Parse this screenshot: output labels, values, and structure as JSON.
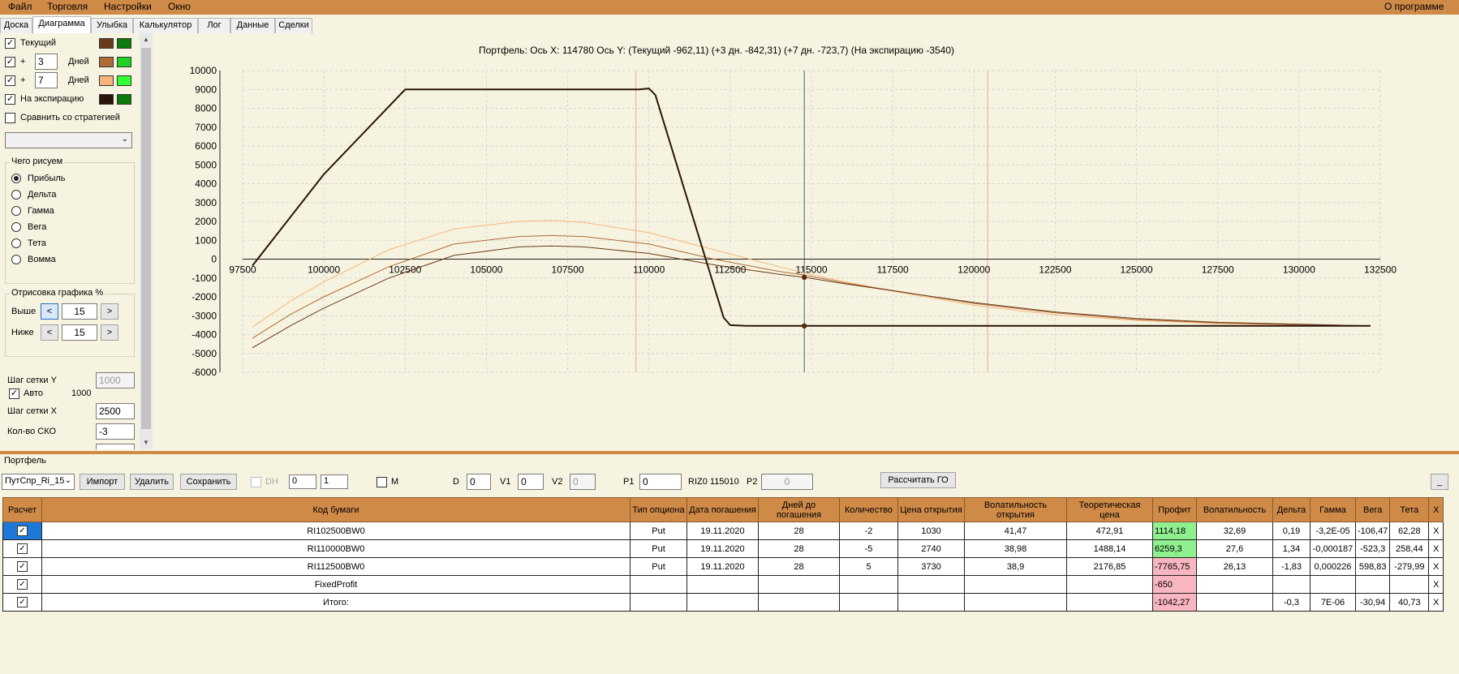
{
  "menu": {
    "items": [
      "Файл",
      "Торговля",
      "Настройки",
      "Окно"
    ],
    "about": "О программе"
  },
  "tabs": [
    "Доска",
    "Диаграмма",
    "Улыбка",
    "Калькулятор",
    "Лог",
    "Данные",
    "Сделки"
  ],
  "active_tab": "Диаграмма",
  "left_panel": {
    "current_label": "Текущий",
    "plus_sign": "+",
    "plus3_days": "3",
    "plus7_days": "7",
    "days_label": "Дней",
    "expiry_label": "На экспирацию",
    "compare_label": "Сравнить со стратегией",
    "colors": {
      "current": [
        "#6b3a1a",
        "#0c7a0c"
      ],
      "plus3": [
        "#b06a36",
        "#21d021"
      ],
      "plus7": [
        "#f6b47a",
        "#33ff33"
      ],
      "expiry": [
        "#2b1508",
        "#0c7a0c"
      ]
    },
    "what_group_title": "Чего рисуем",
    "what_options": [
      "Прибыль",
      "Дельта",
      "Гамма",
      "Вега",
      "Тета",
      "Вомма"
    ],
    "what_selected": 0,
    "render_group_title": "Отрисовка графика %",
    "above_label": "Выше",
    "below_label": "Ниже",
    "above_value": "15",
    "below_value": "15",
    "dec_symbol": "<",
    "inc_symbol": ">",
    "grid_y_label": "Шаг сетки Y",
    "grid_y_value": "1000",
    "auto_label": "Авто",
    "auto_value": "1000",
    "grid_x_label": "Шаг сетки X",
    "grid_x_value": "2500",
    "sko_label": "Кол-во СКО",
    "sko_value": "-3"
  },
  "chart_title": "Портфель:  Ось X:  114780  Ось Y:   (Текущий -962,11)   (+3 дн. -842,31)   (+7 дн. -723,7)   (На экспирацию -3540)",
  "chart_data": {
    "type": "line",
    "title": "Портфель:  Ось X:  114780  Ось Y:   (Текущий -962,11)   (+3 дн. -842,31)   (+7 дн. -723,7)   (На экспирацию -3540)",
    "xlim": [
      97500,
      132500
    ],
    "ylim": [
      -6000,
      10000
    ],
    "x_ticks": [
      97500,
      100000,
      102500,
      105000,
      107500,
      110000,
      112500,
      115000,
      117500,
      120000,
      122500,
      125000,
      127500,
      130000,
      132500
    ],
    "y_ticks": [
      10000,
      9000,
      8000,
      7000,
      6000,
      5000,
      4000,
      3000,
      2000,
      1000,
      0,
      -1000,
      -2000,
      -3000,
      -4000,
      -5000,
      -6000
    ],
    "grid": true,
    "cursor_x": 114780,
    "sigma_lines_x": [
      109600,
      120420
    ],
    "series": [
      {
        "name": "На экспирацию",
        "color": "#2b1508",
        "width": 2,
        "points": [
          [
            97800,
            -350
          ],
          [
            100000,
            4500
          ],
          [
            102500,
            9000
          ],
          [
            109700,
            9000
          ],
          [
            110000,
            9050
          ],
          [
            110200,
            8700
          ],
          [
            112300,
            -3100
          ],
          [
            112500,
            -3500
          ],
          [
            113000,
            -3540
          ],
          [
            114780,
            -3540
          ],
          [
            132200,
            -3540
          ]
        ]
      },
      {
        "name": "Текущий",
        "color": "#6b3a1a",
        "width": 1,
        "points": [
          [
            97800,
            -4700
          ],
          [
            99000,
            -3500
          ],
          [
            100000,
            -2600
          ],
          [
            102000,
            -1000
          ],
          [
            104000,
            200
          ],
          [
            106000,
            650
          ],
          [
            107000,
            700
          ],
          [
            108000,
            650
          ],
          [
            110000,
            300
          ],
          [
            112000,
            -300
          ],
          [
            114000,
            -800
          ],
          [
            114780,
            -962
          ],
          [
            116000,
            -1300
          ],
          [
            118000,
            -1800
          ],
          [
            120000,
            -2300
          ],
          [
            122500,
            -2800
          ],
          [
            125000,
            -3150
          ],
          [
            127500,
            -3350
          ],
          [
            130000,
            -3450
          ],
          [
            132200,
            -3540
          ]
        ]
      },
      {
        "name": "+3 дн.",
        "color": "#b06a36",
        "width": 1,
        "points": [
          [
            97800,
            -4200
          ],
          [
            99000,
            -2900
          ],
          [
            100000,
            -2000
          ],
          [
            102000,
            -400
          ],
          [
            104000,
            800
          ],
          [
            106000,
            1200
          ],
          [
            107000,
            1250
          ],
          [
            108000,
            1200
          ],
          [
            110000,
            800
          ],
          [
            112000,
            0
          ],
          [
            114000,
            -650
          ],
          [
            114780,
            -842
          ],
          [
            116000,
            -1250
          ],
          [
            118000,
            -1800
          ],
          [
            120000,
            -2350
          ],
          [
            122500,
            -2850
          ],
          [
            125000,
            -3200
          ],
          [
            127500,
            -3380
          ],
          [
            130000,
            -3470
          ],
          [
            132200,
            -3540
          ]
        ]
      },
      {
        "name": "+7 дн.",
        "color": "#f6b47a",
        "width": 1,
        "points": [
          [
            97800,
            -3600
          ],
          [
            99000,
            -2200
          ],
          [
            100000,
            -1200
          ],
          [
            102000,
            500
          ],
          [
            104000,
            1600
          ],
          [
            106000,
            2000
          ],
          [
            107000,
            2050
          ],
          [
            108000,
            1950
          ],
          [
            110000,
            1400
          ],
          [
            112000,
            500
          ],
          [
            114000,
            -400
          ],
          [
            114780,
            -724
          ],
          [
            116000,
            -1200
          ],
          [
            118000,
            -1850
          ],
          [
            120000,
            -2450
          ],
          [
            122500,
            -2950
          ],
          [
            125000,
            -3250
          ],
          [
            127500,
            -3420
          ],
          [
            130000,
            -3490
          ],
          [
            132200,
            -3540
          ]
        ]
      }
    ],
    "markers": [
      {
        "x": 114780,
        "y": -962
      },
      {
        "x": 114780,
        "y": -3540
      }
    ]
  },
  "portfolio": {
    "section_label": "Портфель",
    "selector_value": "ПутСпр_Ri_15",
    "import_label": "Импорт",
    "delete_label": "Удалить",
    "save_label": "Сохранить",
    "dh_label": "DH",
    "dh_a": "0",
    "dh_b": "1",
    "m_label": "M",
    "d_label": "D",
    "d_value": "0",
    "v1_label": "V1",
    "v1_value": "0",
    "v2_label": "V2",
    "v2_value": "0",
    "p1_label": "P1",
    "p1_value": "0",
    "riz_label": "RIZ0 115010",
    "p2_label": "P2",
    "p2_value": "0",
    "calc_go_label": "Рассчитать ГО",
    "min_label": "_"
  },
  "table": {
    "headers": [
      "Расчет",
      "Код бумаги",
      "Тип опциона",
      "Дата погашения",
      "Дней до погашения",
      "Количество",
      "Цена открытия",
      "Волатильность открытия",
      "Теоретическая цена",
      "Профит",
      "Волатильность",
      "Дельта",
      "Гамма",
      "Вега",
      "Тета",
      "X"
    ],
    "rows": [
      [
        "",
        "RI102500BW0",
        "Put",
        "19.11.2020",
        "28",
        "-2",
        "1030",
        "41,47",
        "472,91",
        "1114,18",
        "32,69",
        "0,19",
        "-3,2E-05",
        "-106,47",
        "62,28",
        "X"
      ],
      [
        "",
        "RI110000BW0",
        "Put",
        "19.11.2020",
        "28",
        "-5",
        "2740",
        "38,98",
        "1488,14",
        "6259,3",
        "27,6",
        "1,34",
        "-0,000187",
        "-523,3",
        "258,44",
        "X"
      ],
      [
        "",
        "RI112500BW0",
        "Put",
        "19.11.2020",
        "28",
        "5",
        "3730",
        "38,9",
        "2176,85",
        "-7765,75",
        "26,13",
        "-1,83",
        "0,000226",
        "598,83",
        "-279,99",
        "X"
      ],
      [
        "",
        "FixedProfit",
        "",
        "",
        "",
        "",
        "",
        "",
        "",
        "-650",
        "",
        "",
        "",
        "",
        "",
        "X"
      ],
      [
        "",
        "Итого:",
        "",
        "",
        "",
        "",
        "",
        "",
        "",
        "-1042,27",
        "",
        "-0,3",
        "7E-06",
        "-30,94",
        "40,73",
        "X"
      ]
    ],
    "profit_sign": [
      "pos",
      "pos",
      "neg",
      "neg",
      "neg"
    ]
  }
}
